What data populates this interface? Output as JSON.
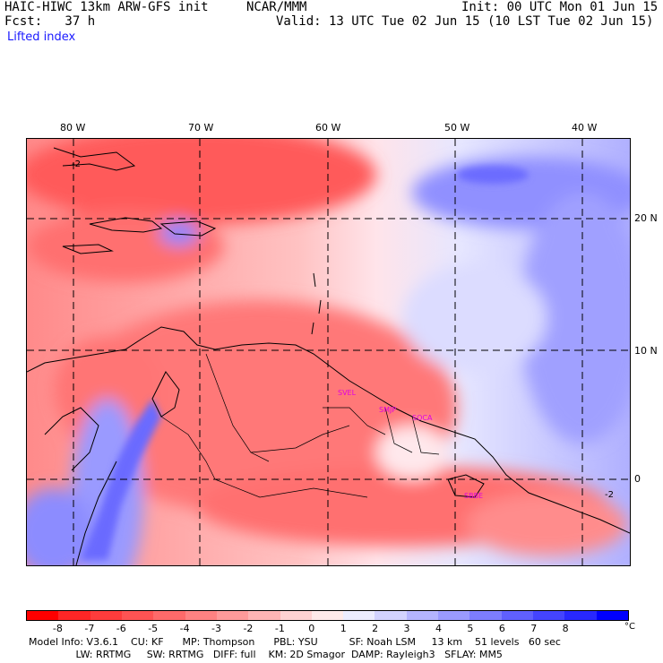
{
  "header": {
    "model_title": "HAIC-HIWC 13km ARW-GFS init",
    "org": "NCAR/MMM",
    "init": "Init: 00 UTC Mon 01 Jun 15",
    "fcst": "Fcst:   37 h",
    "valid": "Valid: 13 UTC Tue 02 Jun 15 (10 LST Tue 02 Jun 15)",
    "field": "Lifted index"
  },
  "map": {
    "lon_labels": [
      "80 W",
      "70 W",
      "60 W",
      "50 W",
      "40 W"
    ],
    "lat_labels": [
      "20 N",
      "10 N",
      "0"
    ],
    "contour_labels": [
      "-2",
      "-2"
    ],
    "stations": [
      "SVEL",
      "SMJP",
      "SOCA",
      "SBBE"
    ]
  },
  "colorbar": {
    "unit": "°C",
    "labels": [
      "-8",
      "-7",
      "-6",
      "-5",
      "-4",
      "-3",
      "-2",
      "-1",
      "0",
      "1",
      "2",
      "3",
      "4",
      "5",
      "6",
      "7",
      "8"
    ],
    "colors": [
      "#ff0000",
      "#ff2626",
      "#ff3c3c",
      "#ff5353",
      "#ff6a6a",
      "#ff8282",
      "#ff9a9a",
      "#ffb4b4",
      "#ffd2d2",
      "#ffeaea",
      "#ececff",
      "#d2d2ff",
      "#b4b4ff",
      "#9a9aff",
      "#7d7dff",
      "#6060ff",
      "#4444ff",
      "#2828ff",
      "#0000ff"
    ]
  },
  "footer": {
    "line1": "Model Info: V3.6.1    CU: KF      MP: Thompson      PBL: YSU          SF: Noah LSM     13 km    51 levels   60 sec",
    "line2": "               LW: RRTMG     SW: RRTMG   DIFF: full    KM: 2D Smagor  DAMP: Rayleigh3   SFLAY: MM5"
  }
}
